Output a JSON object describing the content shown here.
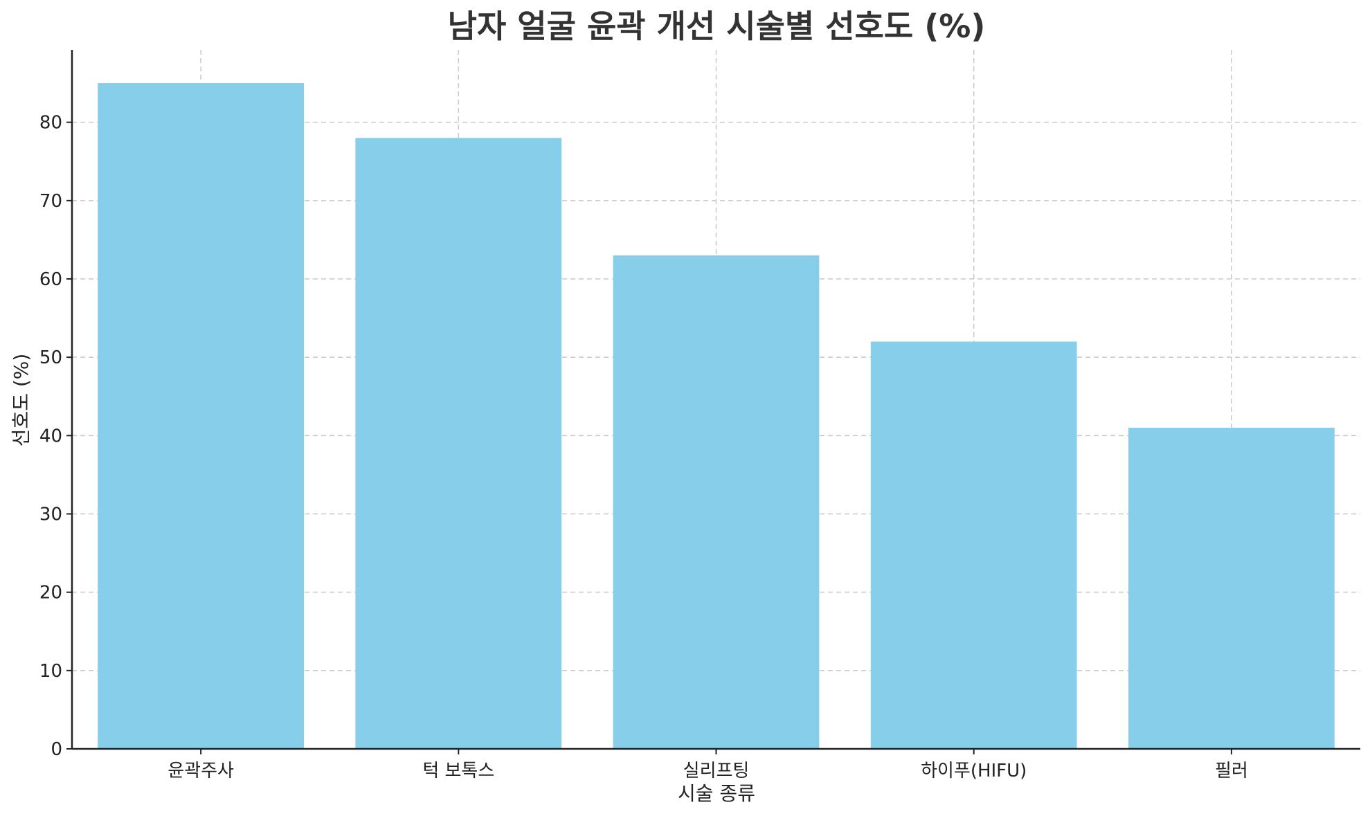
{
  "chart_data": {
    "type": "bar",
    "title": "남자 얼굴 윤곽 개선 시술별 선호도 (%)",
    "xlabel": "시술 종류",
    "ylabel": "선호도 (%)",
    "categories": [
      "윤곽주사",
      "턱 보톡스",
      "실리프팅",
      "하이푸(HIFU)",
      "필러"
    ],
    "values": [
      85,
      78,
      63,
      52,
      41
    ],
    "ylim": [
      0,
      89.25
    ],
    "yticks": [
      0,
      10,
      20,
      30,
      40,
      50,
      60,
      70,
      80
    ],
    "grid": true,
    "bar_color": "#87ceeb"
  }
}
